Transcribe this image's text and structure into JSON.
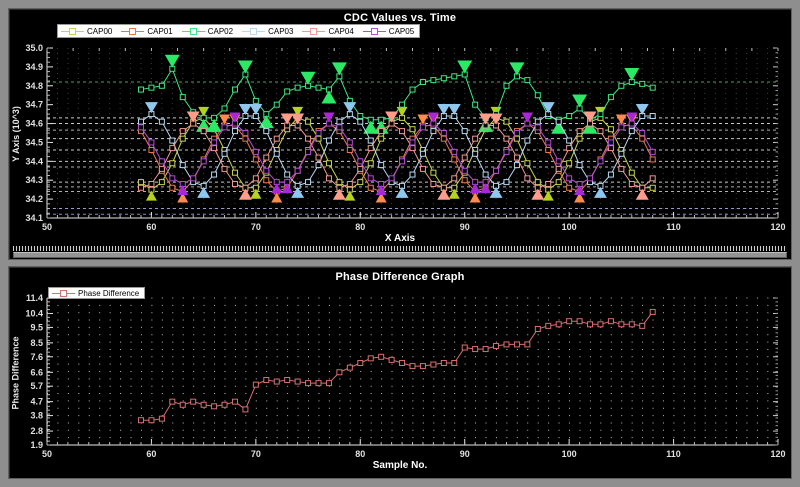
{
  "chart_data": [
    {
      "type": "line",
      "title": "CDC Values vs. Time",
      "xlabel": "X Axis",
      "ylabel": "Y Axis (10^3)",
      "xlim": [
        50,
        120
      ],
      "ylim": [
        34.1,
        35.0
      ],
      "x_ticks": [
        50,
        60,
        70,
        80,
        90,
        100,
        110,
        120
      ],
      "y_ticks": [
        35.0,
        34.9,
        34.8,
        34.7,
        34.6,
        34.5,
        34.4,
        34.3,
        34.2,
        34.1
      ],
      "x_start": 59,
      "x_step": 1,
      "grid": "dashed-reference-lines",
      "legend_position": "top-left",
      "extrema_markers": true,
      "ref_lines": [
        {
          "v": 34.82,
          "color": "#4e9e6a"
        },
        {
          "v": 34.63,
          "color": "#c8c8c8"
        },
        {
          "v": 34.6,
          "color": "#c8c8c8"
        },
        {
          "v": 34.565,
          "color": "#b0b0b0"
        },
        {
          "v": 34.52,
          "color": "#c8c8c8"
        },
        {
          "v": 34.46,
          "color": "#c8c8c8"
        },
        {
          "v": 34.4,
          "color": "#c8c8c8"
        },
        {
          "v": 34.37,
          "color": "#b0b0b0"
        },
        {
          "v": 34.29,
          "color": "#c8c8c8"
        },
        {
          "v": 34.265,
          "color": "#b0b0b0"
        },
        {
          "v": 34.24,
          "color": "#b0b0b0"
        },
        {
          "v": 34.15,
          "color": "#9a9ac2"
        },
        {
          "v": 34.12,
          "color": "#8888c0"
        }
      ],
      "series": [
        {
          "name": "CAP00",
          "color": "#c6d44e",
          "triangle_color": "#b8d020",
          "tri_w": 11,
          "tri_h": 10,
          "values": [
            34.29,
            34.25,
            34.29,
            34.39,
            34.52,
            34.61,
            34.63,
            34.57,
            34.46,
            34.34,
            34.26,
            34.26,
            34.34,
            34.46,
            34.57,
            34.63,
            34.61,
            34.52,
            34.39,
            34.29,
            34.25,
            34.29,
            34.39,
            34.52,
            34.61,
            34.63,
            34.57,
            34.46,
            34.34,
            34.26,
            34.26,
            34.34,
            34.46,
            34.57,
            34.63,
            34.61,
            34.52,
            34.39,
            34.29,
            34.25,
            34.29,
            34.39,
            34.52,
            34.61,
            34.63,
            34.57,
            34.46,
            34.34,
            34.26,
            34.26
          ]
        },
        {
          "name": "CAP01",
          "color": "#e8764a",
          "triangle_color": "#ff8a50",
          "tri_w": 11,
          "tri_h": 10,
          "values": [
            34.56,
            34.46,
            34.35,
            34.26,
            34.24,
            34.3,
            34.41,
            34.52,
            34.59,
            34.59,
            34.52,
            34.41,
            34.3,
            34.24,
            34.26,
            34.35,
            34.46,
            34.56,
            34.6,
            34.56,
            34.46,
            34.35,
            34.26,
            34.24,
            34.3,
            34.41,
            34.52,
            34.59,
            34.59,
            34.52,
            34.41,
            34.3,
            34.24,
            34.26,
            34.35,
            34.46,
            34.56,
            34.6,
            34.56,
            34.46,
            34.35,
            34.26,
            34.24,
            34.3,
            34.41,
            34.52,
            34.59,
            34.59,
            34.52,
            34.41
          ]
        },
        {
          "name": "CAP02",
          "color": "#3ce87e",
          "triangle_color": "#2be964",
          "tri_w": 15,
          "tri_h": 13,
          "values": [
            34.78,
            34.79,
            34.8,
            34.89,
            34.74,
            34.66,
            34.63,
            34.63,
            34.68,
            34.78,
            34.86,
            34.72,
            34.65,
            34.7,
            34.77,
            34.79,
            34.8,
            34.79,
            34.78,
            34.85,
            34.72,
            34.64,
            34.62,
            34.62,
            34.63,
            34.7,
            34.78,
            34.82,
            34.83,
            34.84,
            34.85,
            34.86,
            34.7,
            34.63,
            34.65,
            34.8,
            34.85,
            34.83,
            34.75,
            34.64,
            34.62,
            34.64,
            34.68,
            34.62,
            34.65,
            34.74,
            34.8,
            34.82,
            34.81,
            34.79
          ]
        },
        {
          "name": "CAP03",
          "color": "#b6d9f0",
          "triangle_color": "#8fc7ee",
          "tri_w": 13,
          "tri_h": 11,
          "values": [
            34.61,
            34.65,
            34.61,
            34.51,
            34.38,
            34.29,
            34.27,
            34.33,
            34.44,
            34.56,
            34.64,
            34.64,
            34.56,
            34.44,
            34.33,
            34.27,
            34.29,
            34.38,
            34.51,
            34.61,
            34.65,
            34.61,
            34.51,
            34.38,
            34.29,
            34.27,
            34.33,
            34.44,
            34.56,
            34.64,
            34.64,
            34.56,
            34.44,
            34.33,
            34.27,
            34.29,
            34.38,
            34.51,
            34.61,
            34.65,
            34.61,
            34.51,
            34.38,
            34.29,
            34.27,
            34.33,
            34.44,
            34.56,
            34.64,
            34.64
          ]
        },
        {
          "name": "CAP04",
          "color": "#f09a92",
          "triangle_color": "#ff9c8a",
          "tri_w": 13,
          "tri_h": 11,
          "values": [
            34.26,
            34.28,
            34.36,
            34.47,
            34.56,
            34.6,
            34.56,
            34.47,
            34.36,
            34.28,
            34.26,
            34.31,
            34.42,
            34.52,
            34.59,
            34.59,
            34.52,
            34.42,
            34.31,
            34.26,
            34.28,
            34.36,
            34.47,
            34.56,
            34.6,
            34.56,
            34.47,
            34.36,
            34.28,
            34.26,
            34.31,
            34.42,
            34.52,
            34.59,
            34.59,
            34.52,
            34.42,
            34.31,
            34.26,
            34.28,
            34.36,
            34.47,
            34.56,
            34.6,
            34.56,
            34.47,
            34.36,
            34.28,
            34.26,
            34.31
          ]
        },
        {
          "name": "CAP05",
          "color": "#b14fd0",
          "triangle_color": "#a828d8",
          "tri_w": 11,
          "tri_h": 10,
          "values": [
            34.58,
            34.5,
            34.4,
            34.31,
            34.28,
            34.31,
            34.4,
            34.5,
            34.58,
            34.6,
            34.55,
            34.45,
            34.35,
            34.29,
            34.29,
            34.35,
            34.45,
            34.55,
            34.6,
            34.58,
            34.5,
            34.4,
            34.31,
            34.28,
            34.31,
            34.4,
            34.5,
            34.58,
            34.6,
            34.55,
            34.45,
            34.35,
            34.29,
            34.29,
            34.35,
            34.45,
            34.55,
            34.6,
            34.58,
            34.5,
            34.4,
            34.31,
            34.28,
            34.31,
            34.4,
            34.5,
            34.58,
            34.6,
            34.55,
            34.45
          ]
        }
      ]
    },
    {
      "type": "line",
      "title": "Phase Difference Graph",
      "xlabel": "Sample No.",
      "ylabel": "Phase Difference",
      "xlim": [
        50,
        120
      ],
      "ylim": [
        1.9,
        11.4
      ],
      "x_ticks": [
        50,
        60,
        70,
        80,
        90,
        100,
        110,
        120
      ],
      "y_ticks": [
        11.4,
        10.4,
        9.5,
        8.5,
        7.6,
        6.6,
        5.7,
        4.7,
        3.8,
        2.8,
        1.9
      ],
      "x_start": 59,
      "x_step": 1,
      "grid": "dotted",
      "dot_grid": {
        "row_step": 0.475,
        "col_step": 1
      },
      "legend_position": "top-left",
      "extrema_markers": false,
      "ref_lines": [],
      "series": [
        {
          "name": "Phase Difference",
          "color": "#d97070",
          "values": [
            3.5,
            3.5,
            3.6,
            4.7,
            4.5,
            4.7,
            4.5,
            4.4,
            4.5,
            4.7,
            4.2,
            5.8,
            6.1,
            6.0,
            6.1,
            6.0,
            5.9,
            5.9,
            5.9,
            6.6,
            6.9,
            7.2,
            7.5,
            7.6,
            7.4,
            7.2,
            7.0,
            7.0,
            7.1,
            7.2,
            7.2,
            8.2,
            8.1,
            8.1,
            8.3,
            8.4,
            8.4,
            8.4,
            9.4,
            9.6,
            9.7,
            9.9,
            9.9,
            9.7,
            9.7,
            9.9,
            9.7,
            9.7,
            9.6,
            10.5
          ]
        }
      ]
    }
  ]
}
